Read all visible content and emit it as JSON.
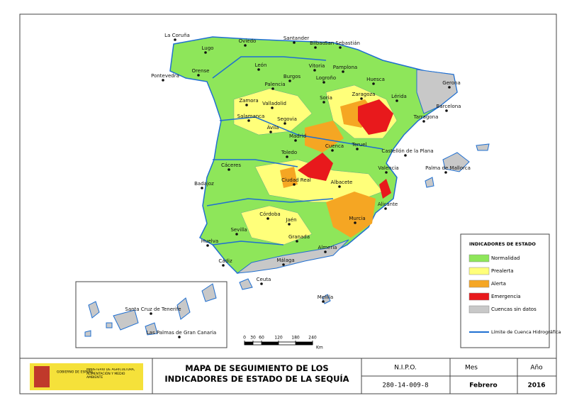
{
  "map": {
    "cities": [
      "La Coruña",
      "Lugo",
      "Oviedo",
      "Santander",
      "Bilbao",
      "San Sebastián",
      "Pontevedra",
      "Orense",
      "León",
      "Vitoria",
      "Pamplona",
      "Logroño",
      "Burgos",
      "Palencia",
      "Huesca",
      "Lérida",
      "Gerona",
      "Barcelona",
      "Tarragona",
      "Zaragoza",
      "Soria",
      "Zamora",
      "Valladolid",
      "Salamanca",
      "Segovia",
      "Ávila",
      "Madrid",
      "Teruel",
      "Castellón de la Plana",
      "Cuenca",
      "Toledo",
      "Cáceres",
      "Valencia",
      "Palma de Mallorca",
      "Badajoz",
      "Ciudad Real",
      "Albacete",
      "Alicante",
      "Murcia",
      "Córdoba",
      "Jaén",
      "Sevilla",
      "Granada",
      "Huelva",
      "Almería",
      "Cádiz",
      "Málaga",
      "Ceuta",
      "Melilla",
      "Santa Cruz de Tenerife",
      "Las Palmas de Gran Canaria"
    ],
    "scale": {
      "ticks": [
        0,
        30,
        60,
        120,
        180,
        240
      ],
      "unit": "Km"
    }
  },
  "legend": {
    "title": "INDICADORES DE ESTADO",
    "items": [
      "Normalidad",
      "Prealerta",
      "Alerta",
      "Emergencia",
      "Cuencas sin datos"
    ],
    "boundary": "Límite de Cuenca Hidrográfica"
  },
  "footer": {
    "gov": "GOBIERNO DE ESPAÑA",
    "ministry": "MINISTERIO DE AGRICULTURA, ALIMENTACIÓN Y MEDIO AMBIENTE",
    "title": "MAPA DE SEGUIMIENTO DE LOS INDICADORES DE ESTADO DE LA SEQUÍA",
    "nipo_label": "N.I.P.O.",
    "nipo": "280-14-009-8",
    "month_label": "Mes",
    "month": "Febrero",
    "year_label": "Año",
    "year": "2016"
  }
}
